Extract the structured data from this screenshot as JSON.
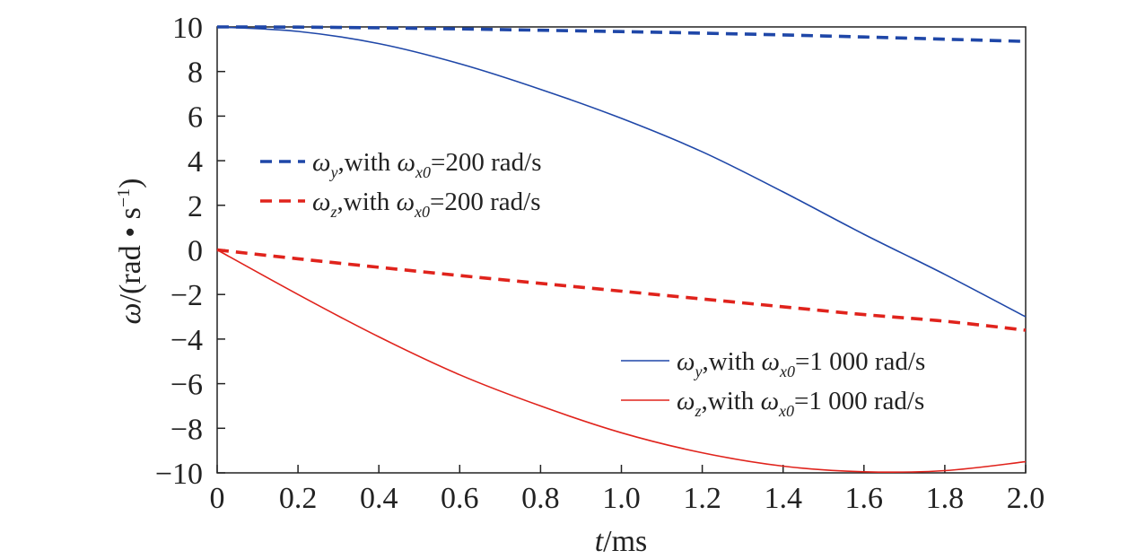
{
  "chart_data": {
    "type": "line",
    "title": "",
    "xlabel": {
      "var": "t",
      "unit": "/ms"
    },
    "ylabel": {
      "var": "ω",
      "unit": "/(rad • s",
      "exp": "−1",
      "close": ")"
    },
    "xlim": [
      0,
      2.0
    ],
    "ylim": [
      -10,
      10
    ],
    "xticks": [
      0,
      0.2,
      0.4,
      0.6,
      0.8,
      1.0,
      1.2,
      1.4,
      1.6,
      1.8,
      2.0
    ],
    "xtick_labels": [
      "0",
      "0.2",
      "0.4",
      "0.6",
      "0.8",
      "1.0",
      "1.2",
      "1.4",
      "1.6",
      "1.8",
      "2.0"
    ],
    "yticks": [
      10,
      8,
      6,
      4,
      2,
      0,
      -2,
      -4,
      -6,
      -8,
      -10
    ],
    "ytick_labels": [
      "10",
      "8",
      "6",
      "4",
      "2",
      "0",
      "−2",
      "−4",
      "−6",
      "−8",
      "−10"
    ],
    "grid": false,
    "legend_placement": [
      "upper-left",
      "lower-right"
    ],
    "series": [
      {
        "legend": {
          "sym": "ω",
          "sub": "y",
          "mid": ",with ",
          "sym2": "ω",
          "sub2": "x0",
          "tail": "=200 rad/s"
        },
        "color": "#1f47a8",
        "style": "dashed",
        "legend_group": 0,
        "x": [
          0,
          0.2,
          0.4,
          0.6,
          0.8,
          1.0,
          1.2,
          1.4,
          1.6,
          1.8,
          2.0
        ],
        "y": [
          10,
          9.99,
          9.96,
          9.91,
          9.85,
          9.79,
          9.72,
          9.64,
          9.55,
          9.45,
          9.35
        ]
      },
      {
        "legend": {
          "sym": "ω",
          "sub": "z",
          "mid": ",with ",
          "sym2": "ω",
          "sub2": "x0",
          "tail": "=200 rad/s"
        },
        "color": "#e0231c",
        "style": "dashed",
        "legend_group": 0,
        "x": [
          0,
          0.2,
          0.4,
          0.6,
          0.8,
          1.0,
          1.2,
          1.4,
          1.6,
          1.8,
          2.0
        ],
        "y": [
          0,
          -0.4,
          -0.78,
          -1.15,
          -1.5,
          -1.85,
          -2.2,
          -2.55,
          -2.9,
          -3.2,
          -3.6
        ]
      },
      {
        "legend": {
          "sym": "ω",
          "sub": "y",
          "mid": ",with ",
          "sym2": "ω",
          "sub2": "x0",
          "tail": "=1 000 rad/s"
        },
        "color": "#1f47a8",
        "style": "solid",
        "legend_group": 1,
        "x": [
          0,
          0.2,
          0.4,
          0.6,
          0.8,
          1.0,
          1.2,
          1.4,
          1.6,
          1.8,
          2.0
        ],
        "y": [
          10,
          9.8,
          9.25,
          8.35,
          7.2,
          5.9,
          4.4,
          2.6,
          0.7,
          -1.1,
          -3.0
        ]
      },
      {
        "legend": {
          "sym": "ω",
          "sub": "z",
          "mid": ",with ",
          "sym2": "ω",
          "sub2": "x0",
          "tail": "=1 000 rad/s"
        },
        "color": "#e0231c",
        "style": "solid",
        "legend_group": 1,
        "x": [
          0,
          0.2,
          0.4,
          0.6,
          0.8,
          1.0,
          1.2,
          1.4,
          1.6,
          1.8,
          2.0
        ],
        "y": [
          0,
          -2.0,
          -3.9,
          -5.6,
          -7.0,
          -8.2,
          -9.1,
          -9.7,
          -9.95,
          -9.9,
          -9.5
        ]
      }
    ]
  }
}
